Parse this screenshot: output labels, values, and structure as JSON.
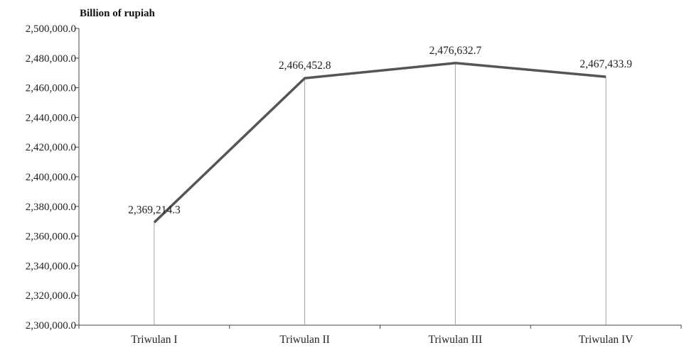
{
  "chart_data": {
    "type": "line",
    "title": "",
    "ylabel": "Billion of rupiah",
    "xlabel": "",
    "categories": [
      "Triwulan I",
      "Triwulan II",
      "Triwulan III",
      "Triwulan IV"
    ],
    "series": [
      {
        "values": [
          2369214.3,
          2466452.8,
          2476632.7,
          2467433.9
        ],
        "value_labels": [
          "2,369,214.3",
          "2,466,452.8",
          "2,476,632.7",
          "2,467,433.9"
        ],
        "color": "#555555"
      }
    ],
    "ylim": [
      2300000,
      2500000
    ],
    "yticks": [
      2300000,
      2320000,
      2340000,
      2360000,
      2380000,
      2400000,
      2420000,
      2440000,
      2460000,
      2480000,
      2500000
    ],
    "ytick_labels": [
      "2,300,000.0",
      "2,320,000.0",
      "2,340,000.0",
      "2,360,000.0",
      "2,380,000.0",
      "2,400,000.0",
      "2,420,000.0",
      "2,440,000.0",
      "2,460,000.0",
      "2,480,000.0",
      "2,500,000.0"
    ],
    "drop_lines": true,
    "grid": false,
    "legend": "none",
    "colors": {
      "line": "#555555",
      "drop_line": "#a0a0a0",
      "axis": "#444444"
    }
  }
}
